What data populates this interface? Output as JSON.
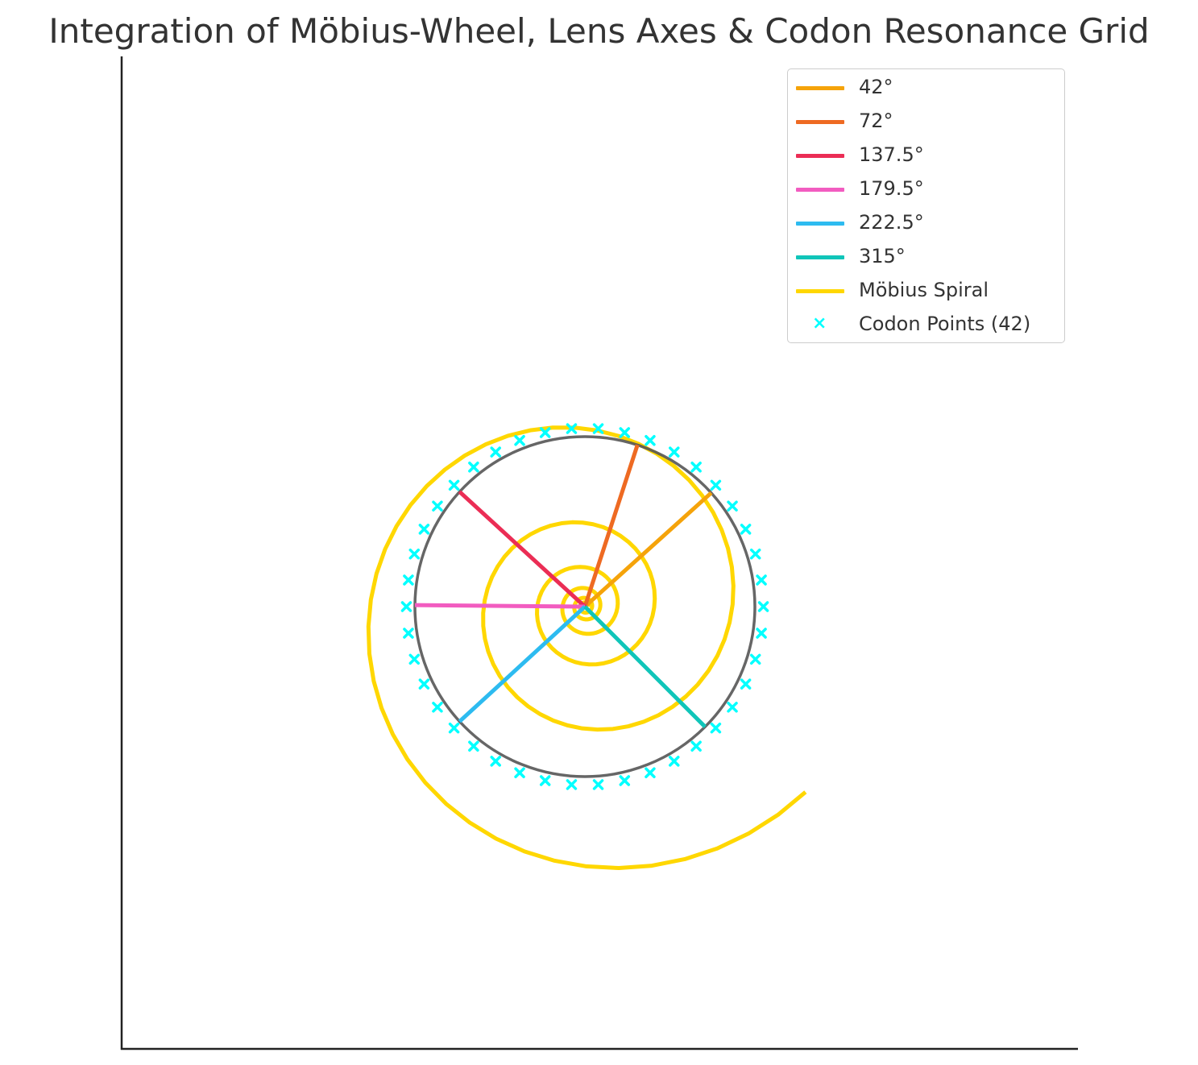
{
  "chart_data": {
    "type": "line",
    "title": "Integration of Möbius-Wheel, Lens Axes & Codon Resonance Grid",
    "xlabel": "",
    "ylabel": "",
    "xlim": [
      -1.35,
      1.35
    ],
    "ylim": [
      -1.18,
      1.42
    ],
    "grid": false,
    "axes_visible": [
      "left",
      "bottom"
    ],
    "legend_position": "top-right",
    "wheel": {
      "radius": 0.5,
      "color": "#555555"
    },
    "lens_axes": [
      {
        "name": "42°",
        "angle_deg": 42,
        "length": 0.5,
        "color": "#f5a30a"
      },
      {
        "name": "72°",
        "angle_deg": 72,
        "length": 0.5,
        "color": "#ee6a22"
      },
      {
        "name": "137.5°",
        "angle_deg": 137.5,
        "length": 0.5,
        "color": "#eb2d55"
      },
      {
        "name": "179.5°",
        "angle_deg": 179.5,
        "length": 0.5,
        "color": "#f25cc0"
      },
      {
        "name": "222.5°",
        "angle_deg": 222.5,
        "length": 0.5,
        "color": "#2dbbf0"
      },
      {
        "name": "315°",
        "angle_deg": 315,
        "length": 0.5,
        "color": "#10c5b9"
      }
    ],
    "spiral": {
      "name": "Möbius Spiral",
      "color": "#ffd700",
      "equation": "r = 0.01·e^(0.12·θ)",
      "theta_range": [
        0,
        37.0
      ],
      "points": 300
    },
    "codon_points": {
      "name": "Codon Points (42)",
      "count": 42,
      "radius": 0.5,
      "color": "#00ffff",
      "marker": "×"
    }
  }
}
